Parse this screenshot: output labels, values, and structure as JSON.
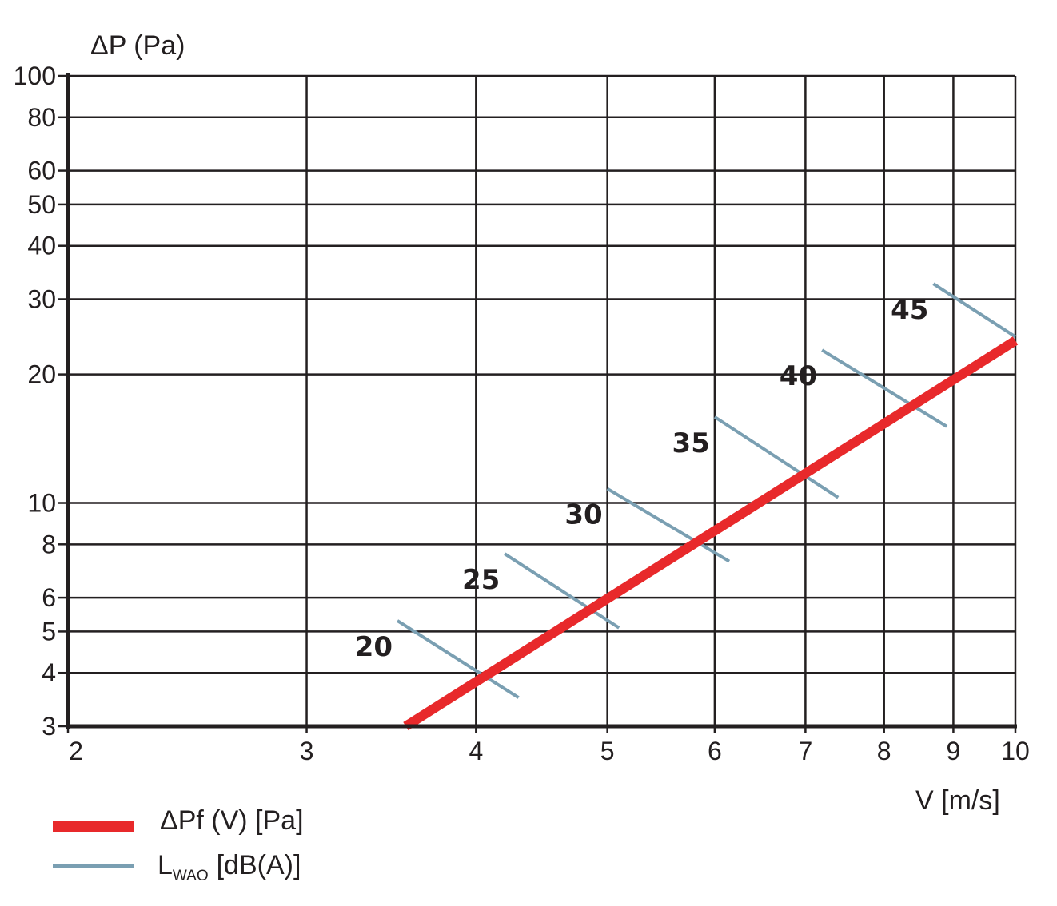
{
  "chart_data": {
    "type": "line",
    "title": "",
    "ylabel": "ΔP (Pa)",
    "xlabel": "V [m/s]",
    "x_scale": "log",
    "y_scale": "log",
    "xlim": [
      2,
      10
    ],
    "ylim": [
      3,
      100
    ],
    "x_ticks": [
      2,
      3,
      4,
      5,
      6,
      7,
      8,
      9,
      10
    ],
    "y_ticks": [
      3,
      4,
      5,
      6,
      8,
      10,
      20,
      30,
      40,
      50,
      60,
      80,
      100
    ],
    "grid": true,
    "colors": {
      "pressure": "#e8292b",
      "noise": "#7a9fb2",
      "grid": "#231f20"
    },
    "series": [
      {
        "name": "ΔPf (V) [Pa]",
        "x": [
          3.55,
          10
        ],
        "y": [
          3,
          24
        ]
      }
    ],
    "noise_lines": [
      {
        "label": "20",
        "x": [
          3.5,
          4.3
        ],
        "y": [
          5.3,
          3.5
        ],
        "cross": [
          4.0,
          4.0
        ]
      },
      {
        "label": "25",
        "x": [
          4.2,
          5.1
        ],
        "y": [
          7.6,
          5.1
        ],
        "cross": [
          4.8,
          5.7
        ]
      },
      {
        "label": "30",
        "x": [
          5.0,
          6.15
        ],
        "y": [
          10.8,
          7.3
        ],
        "cross": [
          5.8,
          8.6
        ]
      },
      {
        "label": "35",
        "x": [
          6.0,
          7.4
        ],
        "y": [
          15.9,
          10.3
        ],
        "cross": [
          7.0,
          12.1
        ]
      },
      {
        "label": "40",
        "x": [
          7.2,
          8.9
        ],
        "y": [
          22.8,
          15.1
        ],
        "cross": [
          8.4,
          17.3
        ]
      },
      {
        "label": "45",
        "x": [
          8.7,
          10
        ],
        "y": [
          32.6,
          24.5
        ],
        "cross": [
          10,
          24
        ]
      }
    ],
    "legend": [
      {
        "label": "ΔPf (V) [Pa]",
        "color": "#e8292b",
        "kind": "pressure"
      },
      {
        "label_main": "L",
        "label_sub": "WAO",
        "label_rest": "[dB(A)]",
        "color": "#7a9fb2",
        "kind": "noise"
      }
    ],
    "legend_position": "bottom-left"
  }
}
